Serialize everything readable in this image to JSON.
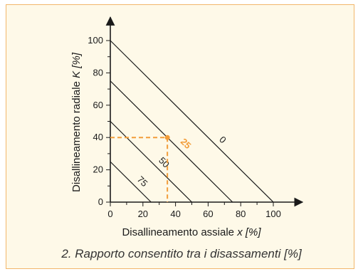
{
  "chart_data": {
    "type": "line",
    "xlabel": "Disallineamento assiale",
    "xlabel_var": "x [%]",
    "ylabel": "Disallineamento radiale",
    "ylabel_var": "K [%]",
    "xlim": [
      0,
      110
    ],
    "ylim": [
      0,
      110
    ],
    "x_ticks": [
      0,
      20,
      40,
      60,
      80,
      100
    ],
    "y_ticks": [
      0,
      20,
      40,
      60,
      80,
      100
    ],
    "series": [
      {
        "name": "0",
        "x": [
          0,
          100
        ],
        "y": [
          100,
          0
        ]
      },
      {
        "name": "25",
        "x": [
          0,
          75
        ],
        "y": [
          75,
          0
        ]
      },
      {
        "name": "50",
        "x": [
          0,
          50
        ],
        "y": [
          50,
          0
        ]
      },
      {
        "name": "75",
        "x": [
          0,
          25
        ],
        "y": [
          25,
          0
        ]
      }
    ],
    "highlight_point": {
      "x": 35,
      "y": 40
    },
    "colors": {
      "line": "#1a1a1a",
      "highlight": "#f29d3a",
      "background": "#fef9e8",
      "border": "#f2b66b"
    }
  },
  "caption": "2. Rapporto consentito tra i disassamenti [%]"
}
